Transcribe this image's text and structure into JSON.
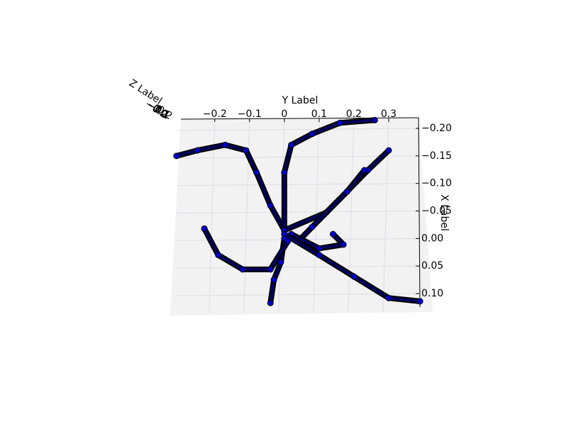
{
  "chart_data": {
    "type": "scatter3d",
    "xlabel": "X Label",
    "ylabel": "Y Label",
    "zlabel": "Z Label",
    "ylim": [
      -0.33,
      0.4
    ],
    "yticks": [
      {
        "value": -0.2,
        "label": "−0.2"
      },
      {
        "value": -0.1,
        "label": "−0.1"
      },
      0.0,
      0.1,
      0.2,
      0.3
    ],
    "xlim": [
      -0.22,
      0.125
    ],
    "xticks": [
      {
        "value": -0.2,
        "label": "−0.20"
      },
      {
        "value": -0.15,
        "label": "−0.15"
      },
      {
        "value": -0.1,
        "label": "−0.10"
      },
      {
        "value": -0.05,
        "label": "−0.05"
      },
      {
        "value": 0.0,
        "label": "0.00"
      },
      {
        "value": 0.05,
        "label": "0.05"
      },
      {
        "value": 0.1,
        "label": "0.10"
      }
    ],
    "zticks": [
      {
        "value": -0.2,
        "label": "−0.2"
      },
      {
        "value": -0.1,
        "label": "−0.1"
      },
      {
        "value": 0.0,
        "label": "0.0"
      },
      {
        "value": 0.1,
        "label": "0.1"
      },
      {
        "value": 0.2,
        "label": "0.2"
      }
    ],
    "color": "#0000cc",
    "edgecolor": "#000000",
    "grid": true,
    "series": [
      {
        "y": [
          0.0,
          -0.04,
          -0.08,
          -0.11,
          -0.17,
          -0.25,
          -0.31
        ],
        "x": [
          -0.015,
          -0.06,
          -0.12,
          -0.16,
          -0.17,
          -0.16,
          -0.15
        ]
      },
      {
        "y": [
          0.0,
          0.0,
          0.02,
          0.08,
          0.16,
          0.26
        ],
        "x": [
          -0.015,
          -0.12,
          -0.17,
          -0.19,
          -0.21,
          -0.215
        ]
      },
      {
        "y": [
          0.0,
          0.12,
          0.18,
          0.24,
          0.3
        ],
        "x": [
          -0.015,
          -0.047,
          -0.085,
          -0.124,
          -0.16
        ]
      },
      {
        "y": [
          0.23,
          0.18,
          0.08,
          0.04
        ],
        "x": [
          -0.124,
          -0.085,
          -0.021,
          0.005
        ]
      },
      {
        "y": [
          0.14,
          0.17,
          0.1,
          0.02
        ],
        "x": [
          -0.008,
          0.011,
          0.018,
          -0.008
        ]
      },
      {
        "y": [
          0.0,
          0.1,
          0.2,
          0.3,
          0.39
        ],
        "x": [
          -0.008,
          0.03,
          0.069,
          0.108,
          0.114
        ]
      },
      {
        "y": [
          0.0,
          -0.01,
          -0.03,
          -0.04
        ],
        "x": [
          0.0,
          0.043,
          0.075,
          0.117
        ]
      },
      {
        "y": [
          0.01,
          -0.04,
          -0.12,
          -0.19,
          -0.23
        ],
        "x": [
          0.005,
          0.056,
          0.056,
          0.03,
          -0.018
        ]
      }
    ]
  }
}
